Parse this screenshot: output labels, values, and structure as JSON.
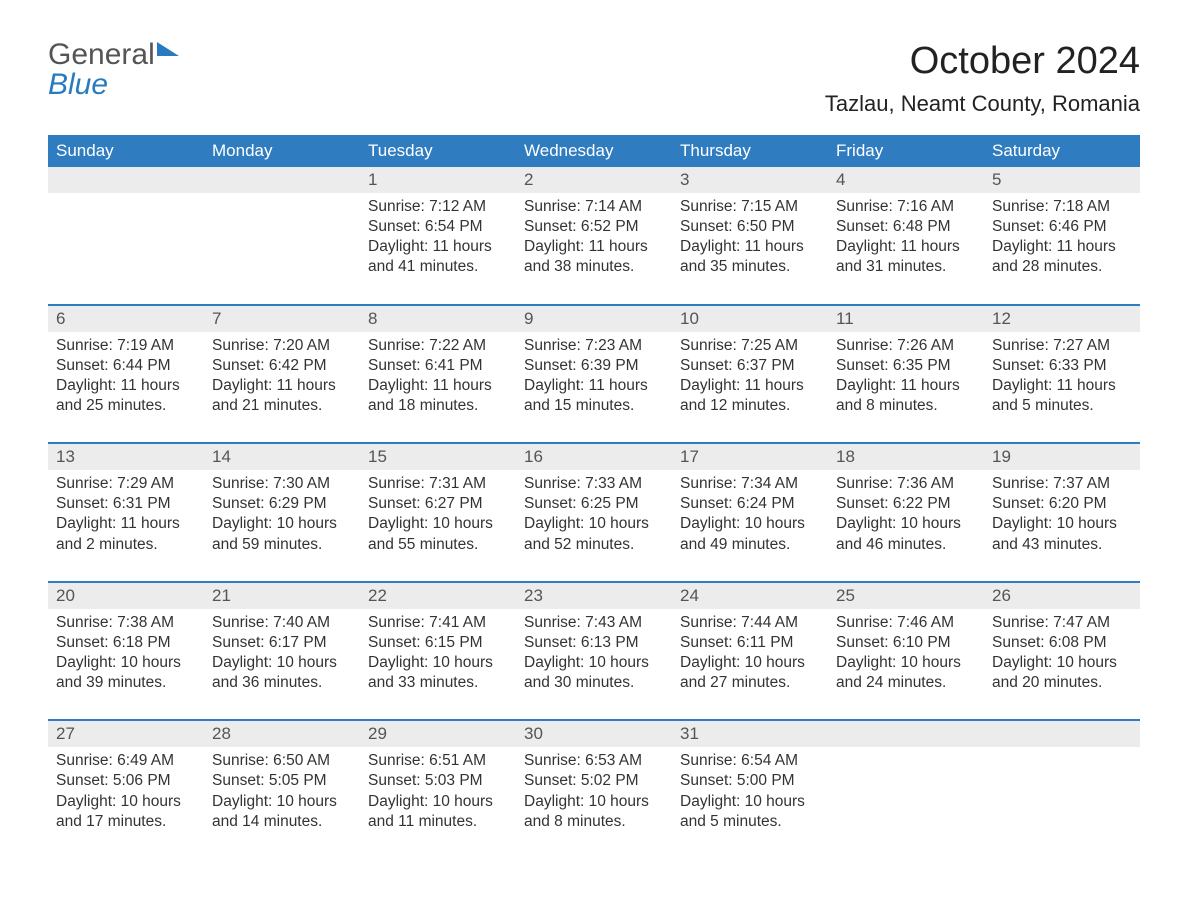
{
  "logo": {
    "part1": "General",
    "part2": "Blue"
  },
  "title": "October 2024",
  "location": "Tazlau, Neamt County, Romania",
  "colors": {
    "header_bg": "#2f7cc0",
    "header_text": "#ffffff",
    "daynum_bg": "#ececec",
    "rule": "#2f7cc0",
    "text": "#333333",
    "logo_blue": "#2a7ac0"
  },
  "day_headers": [
    "Sunday",
    "Monday",
    "Tuesday",
    "Wednesday",
    "Thursday",
    "Friday",
    "Saturday"
  ],
  "weeks": [
    [
      {
        "n": "",
        "lines": []
      },
      {
        "n": "",
        "lines": []
      },
      {
        "n": "1",
        "lines": [
          "Sunrise: 7:12 AM",
          "Sunset: 6:54 PM",
          "Daylight: 11 hours",
          "and 41 minutes."
        ]
      },
      {
        "n": "2",
        "lines": [
          "Sunrise: 7:14 AM",
          "Sunset: 6:52 PM",
          "Daylight: 11 hours",
          "and 38 minutes."
        ]
      },
      {
        "n": "3",
        "lines": [
          "Sunrise: 7:15 AM",
          "Sunset: 6:50 PM",
          "Daylight: 11 hours",
          "and 35 minutes."
        ]
      },
      {
        "n": "4",
        "lines": [
          "Sunrise: 7:16 AM",
          "Sunset: 6:48 PM",
          "Daylight: 11 hours",
          "and 31 minutes."
        ]
      },
      {
        "n": "5",
        "lines": [
          "Sunrise: 7:18 AM",
          "Sunset: 6:46 PM",
          "Daylight: 11 hours",
          "and 28 minutes."
        ]
      }
    ],
    [
      {
        "n": "6",
        "lines": [
          "Sunrise: 7:19 AM",
          "Sunset: 6:44 PM",
          "Daylight: 11 hours",
          "and 25 minutes."
        ]
      },
      {
        "n": "7",
        "lines": [
          "Sunrise: 7:20 AM",
          "Sunset: 6:42 PM",
          "Daylight: 11 hours",
          "and 21 minutes."
        ]
      },
      {
        "n": "8",
        "lines": [
          "Sunrise: 7:22 AM",
          "Sunset: 6:41 PM",
          "Daylight: 11 hours",
          "and 18 minutes."
        ]
      },
      {
        "n": "9",
        "lines": [
          "Sunrise: 7:23 AM",
          "Sunset: 6:39 PM",
          "Daylight: 11 hours",
          "and 15 minutes."
        ]
      },
      {
        "n": "10",
        "lines": [
          "Sunrise: 7:25 AM",
          "Sunset: 6:37 PM",
          "Daylight: 11 hours",
          "and 12 minutes."
        ]
      },
      {
        "n": "11",
        "lines": [
          "Sunrise: 7:26 AM",
          "Sunset: 6:35 PM",
          "Daylight: 11 hours",
          "and 8 minutes."
        ]
      },
      {
        "n": "12",
        "lines": [
          "Sunrise: 7:27 AM",
          "Sunset: 6:33 PM",
          "Daylight: 11 hours",
          "and 5 minutes."
        ]
      }
    ],
    [
      {
        "n": "13",
        "lines": [
          "Sunrise: 7:29 AM",
          "Sunset: 6:31 PM",
          "Daylight: 11 hours",
          "and 2 minutes."
        ]
      },
      {
        "n": "14",
        "lines": [
          "Sunrise: 7:30 AM",
          "Sunset: 6:29 PM",
          "Daylight: 10 hours",
          "and 59 minutes."
        ]
      },
      {
        "n": "15",
        "lines": [
          "Sunrise: 7:31 AM",
          "Sunset: 6:27 PM",
          "Daylight: 10 hours",
          "and 55 minutes."
        ]
      },
      {
        "n": "16",
        "lines": [
          "Sunrise: 7:33 AM",
          "Sunset: 6:25 PM",
          "Daylight: 10 hours",
          "and 52 minutes."
        ]
      },
      {
        "n": "17",
        "lines": [
          "Sunrise: 7:34 AM",
          "Sunset: 6:24 PM",
          "Daylight: 10 hours",
          "and 49 minutes."
        ]
      },
      {
        "n": "18",
        "lines": [
          "Sunrise: 7:36 AM",
          "Sunset: 6:22 PM",
          "Daylight: 10 hours",
          "and 46 minutes."
        ]
      },
      {
        "n": "19",
        "lines": [
          "Sunrise: 7:37 AM",
          "Sunset: 6:20 PM",
          "Daylight: 10 hours",
          "and 43 minutes."
        ]
      }
    ],
    [
      {
        "n": "20",
        "lines": [
          "Sunrise: 7:38 AM",
          "Sunset: 6:18 PM",
          "Daylight: 10 hours",
          "and 39 minutes."
        ]
      },
      {
        "n": "21",
        "lines": [
          "Sunrise: 7:40 AM",
          "Sunset: 6:17 PM",
          "Daylight: 10 hours",
          "and 36 minutes."
        ]
      },
      {
        "n": "22",
        "lines": [
          "Sunrise: 7:41 AM",
          "Sunset: 6:15 PM",
          "Daylight: 10 hours",
          "and 33 minutes."
        ]
      },
      {
        "n": "23",
        "lines": [
          "Sunrise: 7:43 AM",
          "Sunset: 6:13 PM",
          "Daylight: 10 hours",
          "and 30 minutes."
        ]
      },
      {
        "n": "24",
        "lines": [
          "Sunrise: 7:44 AM",
          "Sunset: 6:11 PM",
          "Daylight: 10 hours",
          "and 27 minutes."
        ]
      },
      {
        "n": "25",
        "lines": [
          "Sunrise: 7:46 AM",
          "Sunset: 6:10 PM",
          "Daylight: 10 hours",
          "and 24 minutes."
        ]
      },
      {
        "n": "26",
        "lines": [
          "Sunrise: 7:47 AM",
          "Sunset: 6:08 PM",
          "Daylight: 10 hours",
          "and 20 minutes."
        ]
      }
    ],
    [
      {
        "n": "27",
        "lines": [
          "Sunrise: 6:49 AM",
          "Sunset: 5:06 PM",
          "Daylight: 10 hours",
          "and 17 minutes."
        ]
      },
      {
        "n": "28",
        "lines": [
          "Sunrise: 6:50 AM",
          "Sunset: 5:05 PM",
          "Daylight: 10 hours",
          "and 14 minutes."
        ]
      },
      {
        "n": "29",
        "lines": [
          "Sunrise: 6:51 AM",
          "Sunset: 5:03 PM",
          "Daylight: 10 hours",
          "and 11 minutes."
        ]
      },
      {
        "n": "30",
        "lines": [
          "Sunrise: 6:53 AM",
          "Sunset: 5:02 PM",
          "Daylight: 10 hours",
          "and 8 minutes."
        ]
      },
      {
        "n": "31",
        "lines": [
          "Sunrise: 6:54 AM",
          "Sunset: 5:00 PM",
          "Daylight: 10 hours",
          "and 5 minutes."
        ]
      },
      {
        "n": "",
        "lines": []
      },
      {
        "n": "",
        "lines": []
      }
    ]
  ]
}
